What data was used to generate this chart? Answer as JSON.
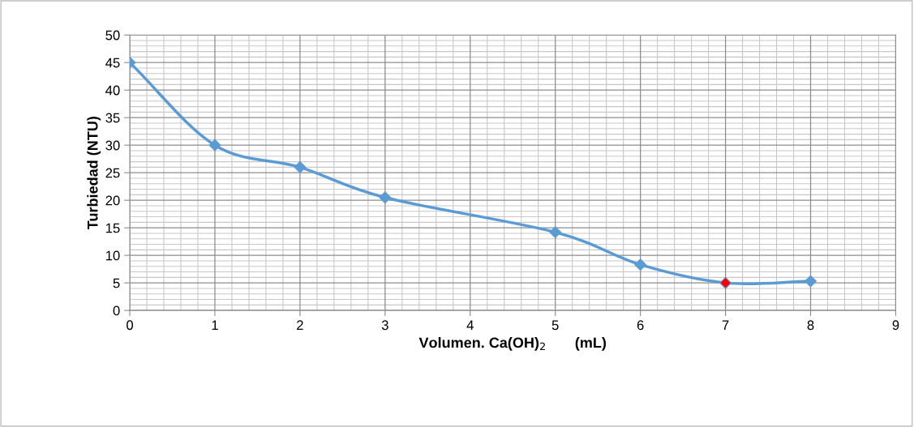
{
  "chart_data": {
    "type": "line",
    "xlabel": "Volumen. Ca(OH)$_{2}$       (mL)",
    "ylabel": "Turbiedad (NTU)",
    "x": [
      0,
      1,
      2,
      3,
      5,
      6,
      7,
      8
    ],
    "series": [
      {
        "color": "#5b9bd5",
        "colors": [
          "#5b9bd5",
          "#5b9bd5",
          "#5b9bd5",
          "#5b9bd5",
          "#5b9bd5",
          "#5b9bd5",
          "#ff0000",
          "#5b9bd5"
        ],
        "values": [
          45,
          30,
          26,
          20.5,
          14.2,
          8.3,
          5.0,
          5.3
        ]
      }
    ],
    "xlim": [
      0,
      9
    ],
    "xticks": [
      0,
      1,
      2,
      3,
      4,
      5,
      6,
      7,
      8,
      9
    ],
    "ylim": [
      0,
      50
    ],
    "yticks": [
      0,
      5,
      10,
      15,
      20,
      25,
      30,
      35,
      40,
      45,
      50
    ],
    "grid": true,
    "marker": "diamond",
    "line_style": "solid",
    "legend": false
  }
}
